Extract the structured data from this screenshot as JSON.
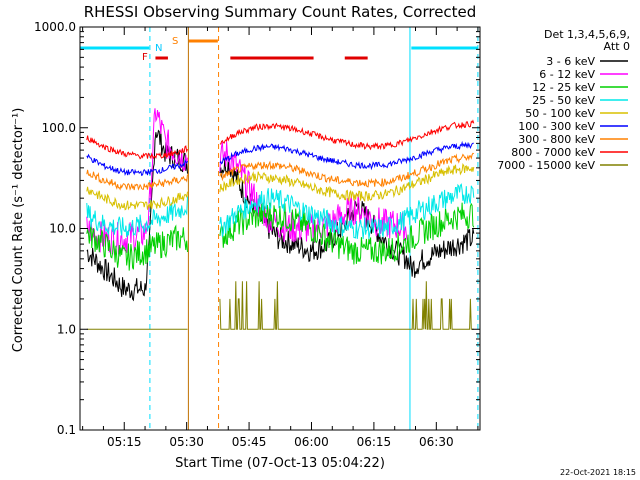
{
  "chart_data": {
    "type": "line",
    "title": "RHESSI Observing Summary Count Rates, Corrected",
    "xlabel": "Start Time (07-Oct-13 05:04:22)",
    "ylabel": "Corrected Count Rate (s⁻¹ detector⁻¹)",
    "y_scale": "log",
    "ylim": [
      0.1,
      1000
    ],
    "xlim": [
      "05:04:22",
      "06:40:30"
    ],
    "x_ticks": [
      "05:15",
      "05:30",
      "05:45",
      "06:00",
      "06:15",
      "06:30"
    ],
    "y_ticks": [
      "0.1",
      "1.0",
      "10.0",
      "100.0",
      "1000.0"
    ],
    "legend_header": [
      "Det 1,3,4,5,6,9,",
      "Att 0"
    ],
    "legend_position": "right",
    "footer": "22-Oct-2021 18:15",
    "flag_labels": {
      "F": "F",
      "N": "N",
      "S": "S"
    },
    "flags": [
      {
        "label": "F",
        "color": "#e00000",
        "segments": [
          [
            "05:22:30",
            "05:25:30"
          ]
        ]
      },
      {
        "label": "N",
        "color": "#00e0ff",
        "segments": [
          [
            "05:04:22",
            "05:21:00"
          ],
          [
            "06:24:00",
            "06:40:00"
          ]
        ]
      },
      {
        "label": "S",
        "color": "#ff8000",
        "segments": [
          [
            "05:30:30",
            "05:37:30"
          ]
        ]
      },
      {
        "label": "",
        "color": "#e00000",
        "segments": [
          [
            "05:40:30",
            "06:00:30"
          ],
          [
            "06:08:00",
            "06:13:30"
          ]
        ]
      }
    ],
    "vertical_markers": [
      {
        "time": "05:04:22",
        "color": "#00e0ff",
        "style": "solid"
      },
      {
        "time": "05:21:10",
        "color": "#00e0ff",
        "style": "dashed"
      },
      {
        "time": "05:30:25",
        "color": "#c07000",
        "style": "solid"
      },
      {
        "time": "05:37:40",
        "color": "#ff8000",
        "style": "dashed"
      },
      {
        "time": "06:23:40",
        "color": "#00e0ff",
        "style": "solid"
      },
      {
        "time": "06:40:00",
        "color": "#00e0ff",
        "style": "dashed"
      }
    ],
    "gaps": [
      [
        "05:30:20",
        "05:38:00"
      ]
    ],
    "series": [
      {
        "name": "3 - 6 keV",
        "color": "#000000",
        "x": [
          "05:06:00",
          "05:10:00",
          "05:15:00",
          "05:20:00",
          "05:21:00",
          "05:22:30",
          "05:25:00",
          "05:28:00",
          "05:30:00",
          "05:38:00",
          "05:40:00",
          "05:44:00",
          "05:48:00",
          "05:52:00",
          "05:56:00",
          "06:00:00",
          "06:04:00",
          "06:08:00",
          "06:11:00",
          "06:14:00",
          "06:17:00",
          "06:20:00",
          "06:23:00",
          "06:24:00",
          "06:27:00",
          "06:31:00",
          "06:35:00",
          "06:39:00"
        ],
        "values": [
          6,
          4,
          2.5,
          2.5,
          6,
          100,
          55,
          50,
          45,
          40,
          45,
          22,
          12,
          8,
          7,
          6,
          7,
          11,
          17,
          12,
          8,
          6,
          5,
          4,
          5,
          6,
          7,
          8
        ]
      },
      {
        "name": "6 - 12 keV",
        "color": "#ff00ff",
        "x": [
          "05:06:00",
          "05:10:00",
          "05:15:00",
          "05:20:00",
          "05:21:00",
          "05:22:30",
          "05:25:00",
          "05:28:00",
          "05:30:00",
          "05:38:00",
          "05:40:00",
          "05:44:00",
          "05:48:00",
          "05:52:00",
          "05:56:00",
          "06:00:00",
          "06:04:00",
          "06:08:00",
          "06:11:00",
          "06:14:00",
          "06:17:00",
          "06:20:00",
          "06:23:00"
        ],
        "values": [
          10,
          8,
          8,
          9,
          15,
          150,
          70,
          55,
          50,
          50,
          55,
          30,
          15,
          11,
          10,
          10,
          11,
          14,
          16,
          13,
          11,
          11,
          10
        ]
      },
      {
        "name": "12 - 25 keV",
        "color": "#00d000",
        "x": [
          "05:06:00",
          "05:10:00",
          "05:15:00",
          "05:20:00",
          "05:24:00",
          "05:28:00",
          "05:30:00",
          "05:38:00",
          "05:42:00",
          "05:46:00",
          "05:50:00",
          "05:54:00",
          "05:58:00",
          "06:02:00",
          "06:06:00",
          "06:10:00",
          "06:14:00",
          "06:18:00",
          "06:22:00",
          "06:26:00",
          "06:30:00",
          "06:34:00",
          "06:39:00"
        ],
        "values": [
          9,
          7,
          5,
          6,
          7,
          8,
          8,
          8,
          11,
          13,
          14,
          13,
          11,
          9,
          7,
          6,
          6,
          6,
          7,
          9,
          11,
          13,
          14
        ]
      },
      {
        "name": "25 - 50 keV",
        "color": "#00e8e8",
        "x": [
          "05:06:00",
          "05:10:00",
          "05:15:00",
          "05:20:00",
          "05:24:00",
          "05:28:00",
          "05:30:00",
          "05:38:00",
          "05:42:00",
          "05:46:00",
          "05:50:00",
          "05:54:00",
          "05:58:00",
          "06:02:00",
          "06:06:00",
          "06:10:00",
          "06:14:00",
          "06:18:00",
          "06:22:00",
          "06:26:00",
          "06:30:00",
          "06:34:00",
          "06:39:00"
        ],
        "values": [
          14,
          11,
          10,
          11,
          13,
          15,
          17,
          10,
          14,
          18,
          20,
          18,
          15,
          13,
          11,
          10,
          10,
          10,
          12,
          15,
          18,
          21,
          23
        ]
      },
      {
        "name": "50 - 100 keV",
        "color": "#d8c000",
        "x": [
          "05:06:00",
          "05:10:00",
          "05:15:00",
          "05:20:00",
          "05:24:00",
          "05:28:00",
          "05:30:00",
          "05:38:00",
          "05:42:00",
          "05:46:00",
          "05:50:00",
          "05:54:00",
          "05:58:00",
          "06:02:00",
          "06:06:00",
          "06:10:00",
          "06:14:00",
          "06:18:00",
          "06:22:00",
          "06:26:00",
          "06:30:00",
          "06:34:00",
          "06:39:00"
        ],
        "values": [
          25,
          20,
          17,
          17,
          18,
          20,
          22,
          25,
          30,
          33,
          32,
          30,
          27,
          24,
          22,
          21,
          21,
          22,
          25,
          29,
          34,
          38,
          40
        ]
      },
      {
        "name": "100 - 300 keV",
        "color": "#0000ff",
        "x": [
          "05:06:00",
          "05:10:00",
          "05:15:00",
          "05:20:00",
          "05:24:00",
          "05:28:00",
          "05:30:00",
          "05:38:00",
          "05:42:00",
          "05:46:00",
          "05:50:00",
          "05:54:00",
          "05:58:00",
          "06:02:00",
          "06:06:00",
          "06:10:00",
          "06:14:00",
          "06:18:00",
          "06:22:00",
          "06:26:00",
          "06:30:00",
          "06:34:00",
          "06:39:00"
        ],
        "values": [
          52,
          42,
          36,
          36,
          38,
          42,
          45,
          45,
          55,
          62,
          65,
          62,
          56,
          50,
          46,
          43,
          42,
          43,
          47,
          53,
          60,
          65,
          68
        ]
      },
      {
        "name": "300 - 800 keV",
        "color": "#ff8000",
        "x": [
          "05:06:00",
          "05:10:00",
          "05:15:00",
          "05:20:00",
          "05:24:00",
          "05:28:00",
          "05:30:00",
          "05:38:00",
          "05:42:00",
          "05:46:00",
          "05:50:00",
          "05:54:00",
          "05:58:00",
          "06:02:00",
          "06:06:00",
          "06:10:00",
          "06:14:00",
          "06:18:00",
          "06:22:00",
          "06:26:00",
          "06:30:00",
          "06:34:00",
          "06:39:00"
        ],
        "values": [
          37,
          30,
          26,
          26,
          28,
          30,
          32,
          32,
          38,
          42,
          43,
          41,
          37,
          33,
          30,
          29,
          28,
          29,
          32,
          37,
          43,
          48,
          52
        ]
      },
      {
        "name": "800 - 7000 keV",
        "color": "#ff0000",
        "x": [
          "05:06:00",
          "05:10:00",
          "05:15:00",
          "05:20:00",
          "05:24:00",
          "05:28:00",
          "05:30:00",
          "05:38:00",
          "05:42:00",
          "05:46:00",
          "05:50:00",
          "05:54:00",
          "05:58:00",
          "06:02:00",
          "06:06:00",
          "06:10:00",
          "06:14:00",
          "06:18:00",
          "06:22:00",
          "06:26:00",
          "06:30:00",
          "06:34:00",
          "06:39:00"
        ],
        "values": [
          80,
          65,
          55,
          52,
          53,
          57,
          62,
          70,
          88,
          100,
          105,
          100,
          92,
          82,
          74,
          68,
          65,
          66,
          72,
          82,
          95,
          105,
          110
        ]
      },
      {
        "name": "7000 - 15000 keV",
        "color": "#808000",
        "x": [
          "05:06:00",
          "05:08:00",
          "05:15:00",
          "05:22:00",
          "05:28:00",
          "05:30:00",
          "05:38:00",
          "05:40:00",
          "05:46:00",
          "05:50:00",
          "05:54:00",
          "05:58:00",
          "06:02:00",
          "06:08:00",
          "06:14:00",
          "06:20:00",
          "06:24:00",
          "06:30:00",
          "06:35:00",
          "06:39:00"
        ],
        "values": [
          1,
          1,
          1,
          1,
          1,
          1,
          1,
          2,
          2,
          1,
          1,
          1,
          1,
          1,
          1,
          1,
          1,
          1,
          1.5,
          2
        ]
      }
    ]
  }
}
